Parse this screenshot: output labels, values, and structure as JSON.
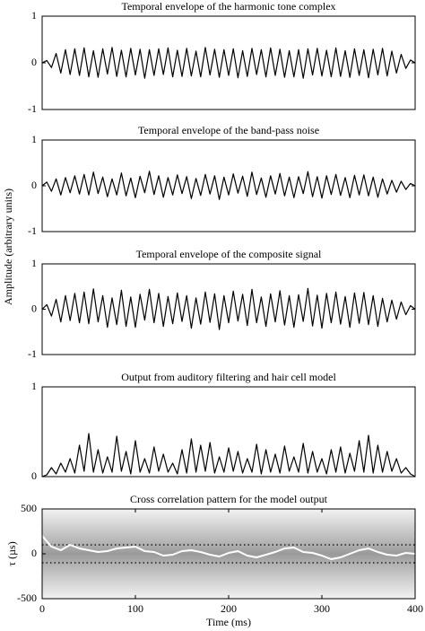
{
  "chart_data": [
    {
      "type": "line",
      "title": "Temporal envelope of the harmonic tone complex",
      "x": [
        0,
        5,
        10,
        15,
        20,
        25,
        30,
        35,
        40,
        45,
        50,
        55,
        60,
        65,
        70,
        75,
        80,
        85,
        90,
        95,
        100,
        105,
        110,
        115,
        120,
        125,
        130,
        135,
        140,
        145,
        150,
        155,
        160,
        165,
        170,
        175,
        180,
        185,
        190,
        195,
        200,
        205,
        210,
        215,
        220,
        225,
        230,
        235,
        240,
        245,
        250,
        255,
        260,
        265,
        270,
        275,
        280,
        285,
        290,
        295,
        300,
        305,
        310,
        315,
        320,
        325,
        330,
        335,
        340,
        345,
        350,
        355,
        360,
        365,
        370,
        375,
        380,
        385,
        390,
        395,
        400
      ],
      "series": [
        {
          "color": "#000000",
          "values": [
            0,
            0.05,
            -0.1,
            0.2,
            -0.22,
            0.28,
            -0.25,
            0.3,
            -0.27,
            0.32,
            -0.3,
            0.26,
            -0.31,
            0.3,
            -0.24,
            0.33,
            -0.29,
            0.27,
            -0.3,
            0.31,
            -0.26,
            0.29,
            -0.33,
            0.28,
            -0.27,
            0.3,
            -0.25,
            0.32,
            -0.3,
            0.27,
            -0.29,
            0.31,
            -0.28,
            0.25,
            -0.3,
            0.33,
            -0.26,
            0.29,
            -0.31,
            0.28,
            -0.27,
            0.3,
            -0.32,
            0.26,
            -0.29,
            0.31,
            -0.25,
            0.28,
            -0.3,
            0.32,
            -0.27,
            0.29,
            -0.31,
            0.26,
            -0.3,
            0.28,
            -0.33,
            0.3,
            -0.26,
            0.31,
            -0.28,
            0.27,
            -0.3,
            0.32,
            -0.29,
            0.26,
            -0.31,
            0.3,
            -0.27,
            0.28,
            -0.32,
            0.29,
            -0.26,
            0.31,
            -0.28,
            0.25,
            -0.22,
            0.18,
            -0.12,
            0.06,
            0
          ]
        }
      ],
      "xlim": [
        0,
        400
      ],
      "ylim": [
        -1,
        1
      ],
      "yticks": [
        -1,
        0,
        1
      ]
    },
    {
      "type": "line",
      "title": "Temporal envelope of the band-pass noise",
      "ylabel": "Amplitude (arbitrary units)",
      "x": [
        0,
        5,
        10,
        15,
        20,
        25,
        30,
        35,
        40,
        45,
        50,
        55,
        60,
        65,
        70,
        75,
        80,
        85,
        90,
        95,
        100,
        105,
        110,
        115,
        120,
        125,
        130,
        135,
        140,
        145,
        150,
        155,
        160,
        165,
        170,
        175,
        180,
        185,
        190,
        195,
        200,
        205,
        210,
        215,
        220,
        225,
        230,
        235,
        240,
        245,
        250,
        255,
        260,
        265,
        270,
        275,
        280,
        285,
        290,
        295,
        300,
        305,
        310,
        315,
        320,
        325,
        330,
        335,
        340,
        345,
        350,
        355,
        360,
        365,
        370,
        375,
        380,
        385,
        390,
        395,
        400
      ],
      "series": [
        {
          "color": "#000000",
          "values": [
            0,
            0.08,
            -0.12,
            0.15,
            -0.2,
            0.18,
            -0.15,
            0.22,
            -0.18,
            0.25,
            -0.2,
            0.3,
            -0.17,
            0.19,
            -0.24,
            0.15,
            -0.2,
            0.28,
            -0.22,
            0.17,
            -0.26,
            0.21,
            -0.15,
            0.32,
            -0.19,
            0.22,
            -0.25,
            0.18,
            -0.2,
            0.24,
            -0.17,
            0.2,
            -0.28,
            0.16,
            -0.21,
            0.25,
            -0.18,
            0.22,
            -0.3,
            0.19,
            -0.2,
            0.26,
            -0.16,
            0.21,
            -0.23,
            0.3,
            -0.19,
            0.17,
            -0.25,
            0.22,
            -0.18,
            0.27,
            -0.22,
            0.19,
            -0.26,
            0.2,
            -0.17,
            0.31,
            -0.24,
            0.2,
            -0.27,
            0.22,
            -0.19,
            0.25,
            -0.21,
            0.18,
            -0.26,
            0.23,
            -0.2,
            0.24,
            -0.22,
            0.19,
            -0.25,
            0.15,
            -0.18,
            0.12,
            -0.14,
            0.1,
            -0.08,
            0.05,
            0
          ]
        }
      ],
      "xlim": [
        0,
        400
      ],
      "ylim": [
        -1,
        1
      ],
      "yticks": [
        -1,
        0,
        1
      ]
    },
    {
      "type": "line",
      "title": "Temporal envelope of the composite signal",
      "x": [
        0,
        5,
        10,
        15,
        20,
        25,
        30,
        35,
        40,
        45,
        50,
        55,
        60,
        65,
        70,
        75,
        80,
        85,
        90,
        95,
        100,
        105,
        110,
        115,
        120,
        125,
        130,
        135,
        140,
        145,
        150,
        155,
        160,
        165,
        170,
        175,
        180,
        185,
        190,
        195,
        200,
        205,
        210,
        215,
        220,
        225,
        230,
        235,
        240,
        245,
        250,
        255,
        260,
        265,
        270,
        275,
        280,
        285,
        290,
        295,
        300,
        305,
        310,
        315,
        320,
        325,
        330,
        335,
        340,
        345,
        350,
        355,
        360,
        365,
        370,
        375,
        380,
        385,
        390,
        395,
        400
      ],
      "series": [
        {
          "color": "#000000",
          "values": [
            0,
            0.1,
            -0.15,
            0.22,
            -0.28,
            0.3,
            -0.25,
            0.35,
            -0.3,
            0.38,
            -0.32,
            0.45,
            -0.28,
            0.3,
            -0.4,
            0.25,
            -0.34,
            0.42,
            -0.38,
            0.27,
            -0.4,
            0.33,
            -0.24,
            0.44,
            -0.3,
            0.35,
            -0.38,
            0.28,
            -0.32,
            0.36,
            -0.27,
            0.3,
            -0.42,
            0.25,
            -0.33,
            0.38,
            -0.29,
            0.34,
            -0.45,
            0.3,
            -0.3,
            0.4,
            -0.26,
            0.33,
            -0.36,
            0.44,
            -0.3,
            0.27,
            -0.38,
            0.34,
            -0.28,
            0.41,
            -0.35,
            0.3,
            -0.4,
            0.32,
            -0.27,
            0.46,
            -0.37,
            0.31,
            -0.42,
            0.35,
            -0.3,
            0.38,
            -0.33,
            0.28,
            -0.4,
            0.36,
            -0.31,
            0.37,
            -0.34,
            0.3,
            -0.38,
            0.24,
            -0.28,
            0.2,
            -0.22,
            0.16,
            -0.12,
            0.08,
            0
          ]
        }
      ],
      "xlim": [
        0,
        400
      ],
      "ylim": [
        -1,
        1
      ],
      "yticks": [
        -1,
        0,
        1
      ]
    },
    {
      "type": "line",
      "title": "Output from auditory filtering and hair cell model",
      "x": [
        0,
        5,
        10,
        15,
        20,
        25,
        30,
        35,
        40,
        45,
        50,
        55,
        60,
        65,
        70,
        75,
        80,
        85,
        90,
        95,
        100,
        105,
        110,
        115,
        120,
        125,
        130,
        135,
        140,
        145,
        150,
        155,
        160,
        165,
        170,
        175,
        180,
        185,
        190,
        195,
        200,
        205,
        210,
        215,
        220,
        225,
        230,
        235,
        240,
        245,
        250,
        255,
        260,
        265,
        270,
        275,
        280,
        285,
        290,
        295,
        300,
        305,
        310,
        315,
        320,
        325,
        330,
        335,
        340,
        345,
        350,
        355,
        360,
        365,
        370,
        375,
        380,
        385,
        390,
        395,
        400
      ],
      "series": [
        {
          "color": "#000000",
          "values": [
            0,
            0.02,
            0.1,
            0.03,
            0.15,
            0.05,
            0.2,
            0.04,
            0.35,
            0.06,
            0.48,
            0.05,
            0.3,
            0.04,
            0.22,
            0.05,
            0.45,
            0.06,
            0.28,
            0.03,
            0.4,
            0.05,
            0.2,
            0.04,
            0.33,
            0.06,
            0.25,
            0.05,
            0.15,
            0.03,
            0.3,
            0.04,
            0.42,
            0.05,
            0.35,
            0.06,
            0.38,
            0.04,
            0.22,
            0.05,
            0.32,
            0.06,
            0.28,
            0.04,
            0.2,
            0.05,
            0.36,
            0.03,
            0.3,
            0.05,
            0.25,
            0.04,
            0.34,
            0.06,
            0.22,
            0.05,
            0.37,
            0.04,
            0.28,
            0.05,
            0.2,
            0.03,
            0.3,
            0.05,
            0.33,
            0.04,
            0.26,
            0.06,
            0.4,
            0.05,
            0.46,
            0.04,
            0.35,
            0.05,
            0.28,
            0.06,
            0.2,
            0.04,
            0.1,
            0.03,
            0
          ]
        }
      ],
      "xlim": [
        0,
        400
      ],
      "ylim": [
        0,
        1
      ],
      "yticks": [
        0,
        1
      ]
    },
    {
      "type": "line",
      "title": "Cross correlation pattern for the model output",
      "xlabel": "Time (ms)",
      "ylabel": "τ (µs)",
      "x": [
        0,
        10,
        20,
        30,
        40,
        50,
        60,
        70,
        80,
        90,
        100,
        110,
        120,
        130,
        140,
        150,
        160,
        170,
        180,
        190,
        200,
        210,
        220,
        230,
        240,
        250,
        260,
        270,
        280,
        290,
        300,
        310,
        320,
        330,
        340,
        350,
        360,
        370,
        380,
        390,
        400
      ],
      "series": [
        {
          "color": "#ffffff",
          "values": [
            200,
            80,
            40,
            100,
            60,
            40,
            20,
            30,
            60,
            70,
            80,
            30,
            20,
            -20,
            -10,
            30,
            40,
            20,
            -10,
            -30,
            10,
            30,
            -20,
            -40,
            -10,
            20,
            60,
            70,
            20,
            10,
            -20,
            -60,
            -40,
            0,
            40,
            60,
            20,
            -10,
            -20,
            10,
            0
          ]
        }
      ],
      "reference_lines": [
        100,
        -100
      ],
      "xlim": [
        0,
        400
      ],
      "ylim": [
        -500,
        500
      ],
      "xticks": [
        0,
        100,
        200,
        300,
        400
      ],
      "yticks": [
        -500,
        0,
        500
      ]
    }
  ]
}
